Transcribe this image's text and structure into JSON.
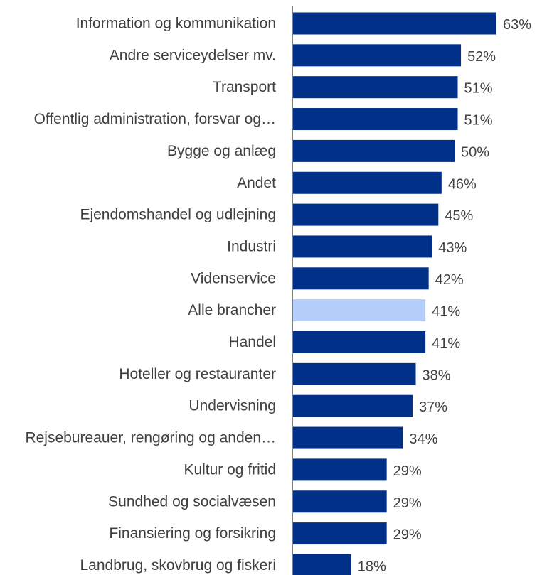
{
  "chart_data": {
    "type": "bar",
    "orientation": "horizontal",
    "title": "",
    "xlabel": "",
    "ylabel": "",
    "xlim": [
      0,
      65
    ],
    "grid": false,
    "legend": "none",
    "colors": {
      "bar": "#003087",
      "highlight": "#b4cdf9",
      "axis": "#808080",
      "text": "#404040"
    },
    "value_suffix": "%",
    "highlight_category": "Alle brancher",
    "categories": [
      "Information og kommunikation",
      "Andre serviceydelser  mv.",
      "Transport",
      "Offentlig administration, forsvar og…",
      "Bygge og anlæg",
      "Andet",
      "Ejendomshandel og udlejning",
      "Industri",
      "Videnservice",
      "Alle brancher",
      "Handel",
      "Hoteller og restauranter",
      "Undervisning",
      "Rejsebureauer, rengøring og anden…",
      "Kultur og fritid",
      "Sundhed og socialvæsen",
      "Finansiering og forsikring",
      "Landbrug, skovbrug og fiskeri"
    ],
    "values": [
      63,
      52,
      51,
      51,
      50,
      46,
      45,
      43,
      42,
      41,
      41,
      38,
      37,
      34,
      29,
      29,
      29,
      18
    ],
    "value_labels": [
      "63%",
      "52%",
      "51%",
      "51%",
      "50%",
      "46%",
      "45%",
      "43%",
      "42%",
      "41%",
      "41%",
      "38%",
      "37%",
      "34%",
      "29%",
      "29%",
      "29%",
      "18%"
    ]
  }
}
